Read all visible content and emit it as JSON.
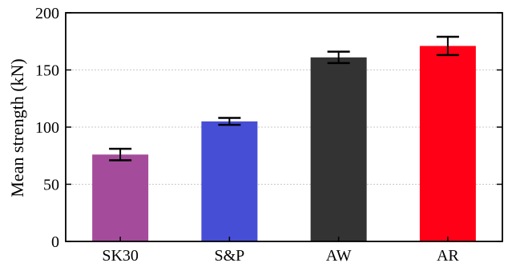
{
  "chart_data": {
    "type": "bar",
    "title": "",
    "xlabel": "",
    "ylabel": "Mean strength (kN)",
    "ylim": [
      0,
      200
    ],
    "yticks": [
      0,
      50,
      100,
      150,
      200
    ],
    "grid": true,
    "categories": [
      "SK30",
      "S&P",
      "AW",
      "AR"
    ],
    "values": [
      76,
      105,
      161,
      171
    ],
    "errors": [
      5,
      3,
      5,
      8
    ],
    "colors": [
      "#a54b9b",
      "#474ed6",
      "#333333",
      "#ff0016"
    ]
  }
}
